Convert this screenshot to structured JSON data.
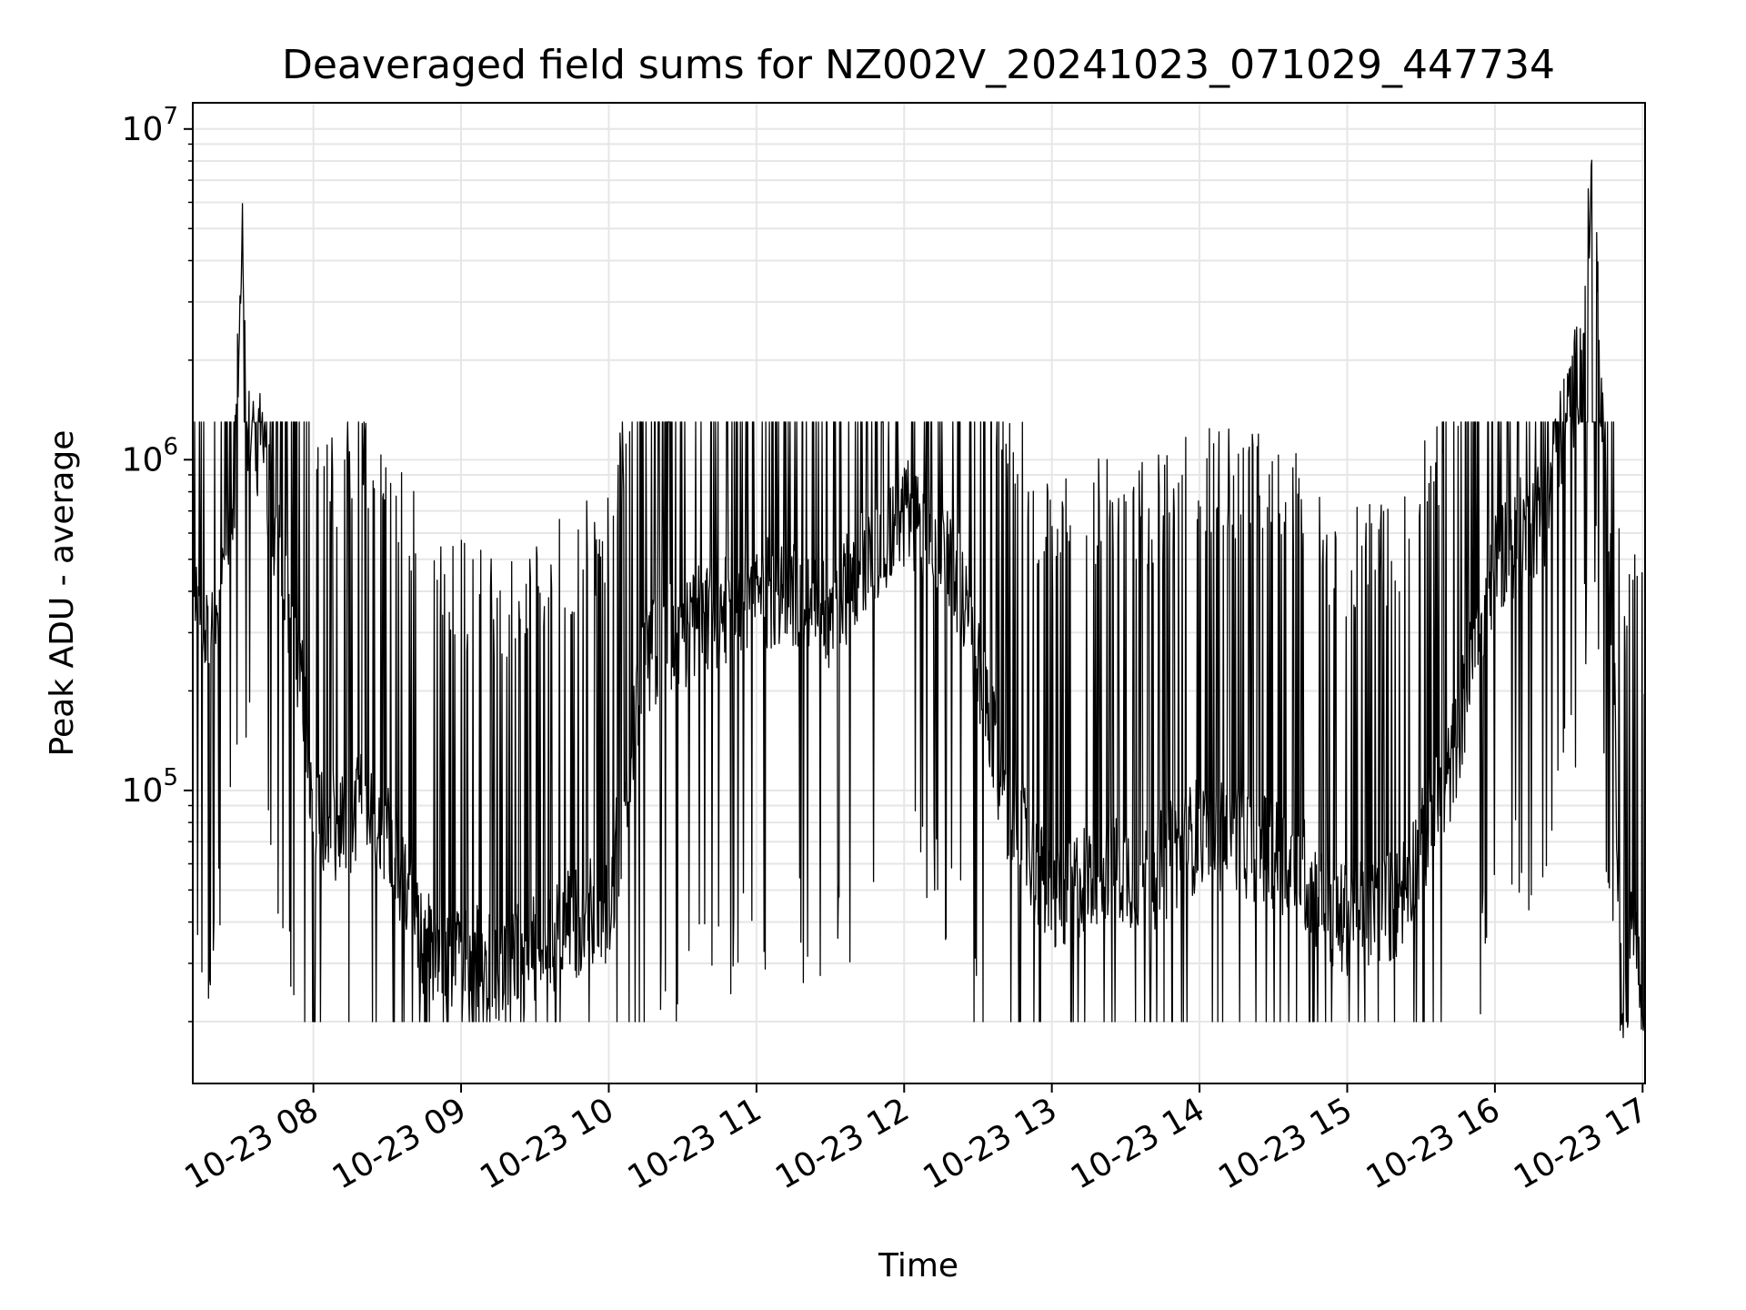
{
  "chart_data": {
    "type": "line",
    "title": "Deaveraged field sums for NZ002V_20241023_071029_447734",
    "xlabel": "Time",
    "ylabel": "Peak ADU - average",
    "yscale": "log",
    "ylim": [
      13000,
      12000000
    ],
    "xlim": [
      "2024-10-23 07:11",
      "2024-10-23 17:01"
    ],
    "grid": true,
    "line_color": "#000000",
    "grid_color": "#e6e6e6",
    "x_ticks": [
      {
        "value": "2024-10-23 08:00",
        "label": "10-23 08"
      },
      {
        "value": "2024-10-23 09:00",
        "label": "10-23 09"
      },
      {
        "value": "2024-10-23 10:00",
        "label": "10-23 10"
      },
      {
        "value": "2024-10-23 11:00",
        "label": "10-23 11"
      },
      {
        "value": "2024-10-23 12:00",
        "label": "10-23 12"
      },
      {
        "value": "2024-10-23 13:00",
        "label": "10-23 13"
      },
      {
        "value": "2024-10-23 14:00",
        "label": "10-23 14"
      },
      {
        "value": "2024-10-23 15:00",
        "label": "10-23 15"
      },
      {
        "value": "2024-10-23 16:00",
        "label": "10-23 16"
      },
      {
        "value": "2024-10-23 17:00",
        "label": "10-23 17"
      }
    ],
    "y_ticks": [
      {
        "value": 100000,
        "base": "10",
        "exp": "5"
      },
      {
        "value": 1000000,
        "base": "10",
        "exp": "6"
      },
      {
        "value": 10000000,
        "base": "10",
        "exp": "7"
      }
    ],
    "series": [
      {
        "points": [
          [
            "2024-10-23 07:11",
            500000
          ],
          [
            "2024-10-23 07:15",
            320000
          ],
          [
            "2024-10-23 07:20",
            300000
          ],
          [
            "2024-10-23 07:24",
            600000
          ],
          [
            "2024-10-23 07:28",
            900000
          ],
          [
            "2024-10-23 07:31",
            5200000
          ],
          [
            "2024-10-23 07:33",
            1300000
          ],
          [
            "2024-10-23 07:40",
            1000000
          ],
          [
            "2024-10-23 07:45",
            600000
          ],
          [
            "2024-10-23 07:50",
            350000
          ],
          [
            "2024-10-23 07:56",
            180000
          ],
          [
            "2024-10-23 07:59",
            90000
          ],
          [
            "2024-10-23 08:10",
            75000
          ],
          [
            "2024-10-23 08:20",
            90000
          ],
          [
            "2024-10-23 08:30",
            70000
          ],
          [
            "2024-10-23 08:38",
            55000
          ],
          [
            "2024-10-23 08:45",
            33000
          ],
          [
            "2024-10-23 09:00",
            32000
          ],
          [
            "2024-10-23 09:15",
            30000
          ],
          [
            "2024-10-23 09:30",
            33000
          ],
          [
            "2024-10-23 09:45",
            40000
          ],
          [
            "2024-10-23 10:00",
            45000
          ],
          [
            "2024-10-23 10:15",
            250000
          ],
          [
            "2024-10-23 10:30",
            300000
          ],
          [
            "2024-10-23 11:00",
            400000
          ],
          [
            "2024-10-23 11:30",
            350000
          ],
          [
            "2024-10-23 12:00",
            700000
          ],
          [
            "2024-10-23 12:20",
            500000
          ],
          [
            "2024-10-23 12:40",
            100000
          ],
          [
            "2024-10-23 13:00",
            45000
          ],
          [
            "2024-10-23 13:20",
            60000
          ],
          [
            "2024-10-23 13:40",
            55000
          ],
          [
            "2024-10-23 14:00",
            75000
          ],
          [
            "2024-10-23 14:20",
            70000
          ],
          [
            "2024-10-23 14:40",
            60000
          ],
          [
            "2024-10-23 14:55",
            40000
          ],
          [
            "2024-10-23 15:20",
            45000
          ],
          [
            "2024-10-23 15:40",
            100000
          ],
          [
            "2024-10-23 16:00",
            500000
          ],
          [
            "2024-10-23 16:20",
            700000
          ],
          [
            "2024-10-23 16:35",
            2000000
          ],
          [
            "2024-10-23 16:40",
            8500000
          ],
          [
            "2024-10-23 16:44",
            1000000
          ],
          [
            "2024-10-23 16:48",
            300000
          ],
          [
            "2024-10-23 16:51",
            25000
          ],
          [
            "2024-10-23 16:53",
            18000
          ],
          [
            "2024-10-23 16:55",
            45000
          ],
          [
            "2024-10-23 16:58",
            40000
          ],
          [
            "2024-10-23 17:01",
            19000
          ]
        ]
      }
    ]
  }
}
